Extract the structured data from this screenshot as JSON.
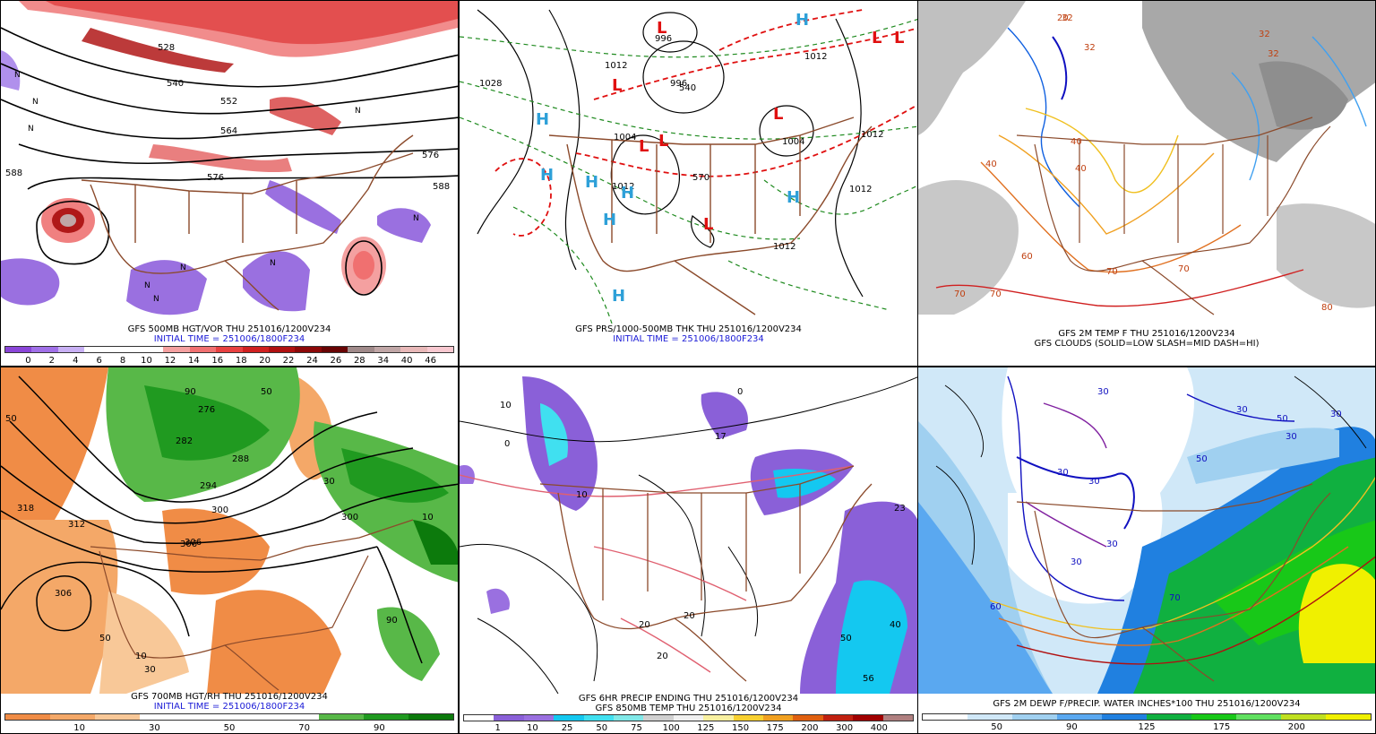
{
  "panels": [
    {
      "id": "p500",
      "caption1": "GFS 500MB HGT/VOR THU 251016/1200V234",
      "caption2": "INITIAL TIME = 251006/1800F234",
      "contour_labels": [
        "528",
        "540",
        "552",
        "564",
        "576",
        "588",
        "588",
        "576"
      ],
      "symbols": [
        "N",
        "N",
        "N",
        "N",
        "N",
        "N",
        "N",
        "N",
        "N"
      ],
      "scale_colors": [
        "#8a45d8",
        "#a070e8",
        "#c8b0f4",
        "#ffffff",
        "#ffffff",
        "#ffffff",
        "#f4a0a0",
        "#f07070",
        "#e84040",
        "#d02020",
        "#b01010",
        "#8c0808",
        "#680404",
        "#a08a8a",
        "#c0a6a6",
        "#e8b8b8",
        "#f8c8d0"
      ],
      "scale_ticks": [
        "0",
        "2",
        "4",
        "6",
        "8",
        "10",
        "12",
        "14",
        "16",
        "18",
        "20",
        "22",
        "24",
        "26",
        "28",
        "34",
        "40",
        "46"
      ]
    },
    {
      "id": "pprs",
      "caption1": "GFS PRS/1000-500MB THK THU 251016/1200V234",
      "caption2": "INITIAL TIME = 251006/1800F234",
      "contour_labels": [
        "996",
        "1012",
        "1028",
        "996",
        "1004",
        "1012",
        "1012",
        "1004",
        "1012",
        "1012",
        "1012",
        "540",
        "570"
      ],
      "highs": [
        "H",
        "H",
        "H",
        "H",
        "H",
        "H",
        "H",
        "H"
      ],
      "lows": [
        "L",
        "L",
        "L",
        "L",
        "L",
        "L",
        "L",
        "L"
      ]
    },
    {
      "id": "ptemp",
      "caption1": "GFS 2M TEMP F THU 251016/1200V234",
      "caption2": "GFS CLOUDS (SOLID=LOW SLASH=MID DASH=HI)",
      "contour_labels": [
        "32",
        "32",
        "32",
        "40",
        "40",
        "40",
        "60",
        "70",
        "70",
        "70",
        "70",
        "80",
        "20",
        "32"
      ]
    },
    {
      "id": "p700",
      "caption1": "GFS 700MB HGT/RH THU 251016/1200V234",
      "caption2": "INITIAL TIME = 251006/1800F234",
      "contour_labels": [
        "318",
        "312",
        "306",
        "300",
        "306",
        "288",
        "276",
        "282",
        "294",
        "300",
        "306",
        "50",
        "90",
        "50",
        "30",
        "10",
        "90",
        "50",
        "10",
        "30"
      ],
      "scale_colors": [
        "#f08c46",
        "#f4a868",
        "#f8c898",
        "#ffffff",
        "#ffffff",
        "#ffffff",
        "#ffffff",
        "#58b848",
        "#209a20",
        "#0c7a0c"
      ],
      "scale_ticks": [
        "10",
        "30",
        "50",
        "70",
        "90"
      ]
    },
    {
      "id": "pprecip",
      "caption1": "GFS 6HR PRECIP ENDING THU 251016/1200V234",
      "caption2": "GFS 850MB TEMP THU 251016/1200V234",
      "contour_labels": [
        "0",
        "10",
        "20",
        "20",
        "20",
        "10",
        "17",
        "23",
        "40",
        "50",
        "56",
        "0"
      ],
      "scale_colors": [
        "#ffffff",
        "#8a60d8",
        "#9a70e0",
        "#14c8f0",
        "#40e0f0",
        "#80e8e8",
        "#d0d0d0",
        "#f0f0f0",
        "#f8f0a0",
        "#f8d030",
        "#f0a020",
        "#e06010",
        "#c02010",
        "#a00000",
        "#b08080"
      ],
      "scale_ticks": [
        "1",
        "10",
        "25",
        "50",
        "75",
        "100",
        "125",
        "150",
        "175",
        "200",
        "300",
        "400"
      ]
    },
    {
      "id": "pdew",
      "caption1": "GFS 2M DEWP F/PRECIP. WATER INCHES*100 THU 251016/1200V234",
      "contour_labels": [
        "30",
        "30",
        "30",
        "30",
        "30",
        "30",
        "50",
        "30",
        "50",
        "30",
        "60",
        "70"
      ],
      "scale_colors": [
        "#ffffff",
        "#d0e8f8",
        "#a0d0f0",
        "#5aa8f0",
        "#2080e0",
        "#10b040",
        "#18c818",
        "#60e060",
        "#c0e020",
        "#f0f000"
      ],
      "scale_ticks": [
        "50",
        "90",
        "125",
        "175",
        "200"
      ]
    }
  ]
}
